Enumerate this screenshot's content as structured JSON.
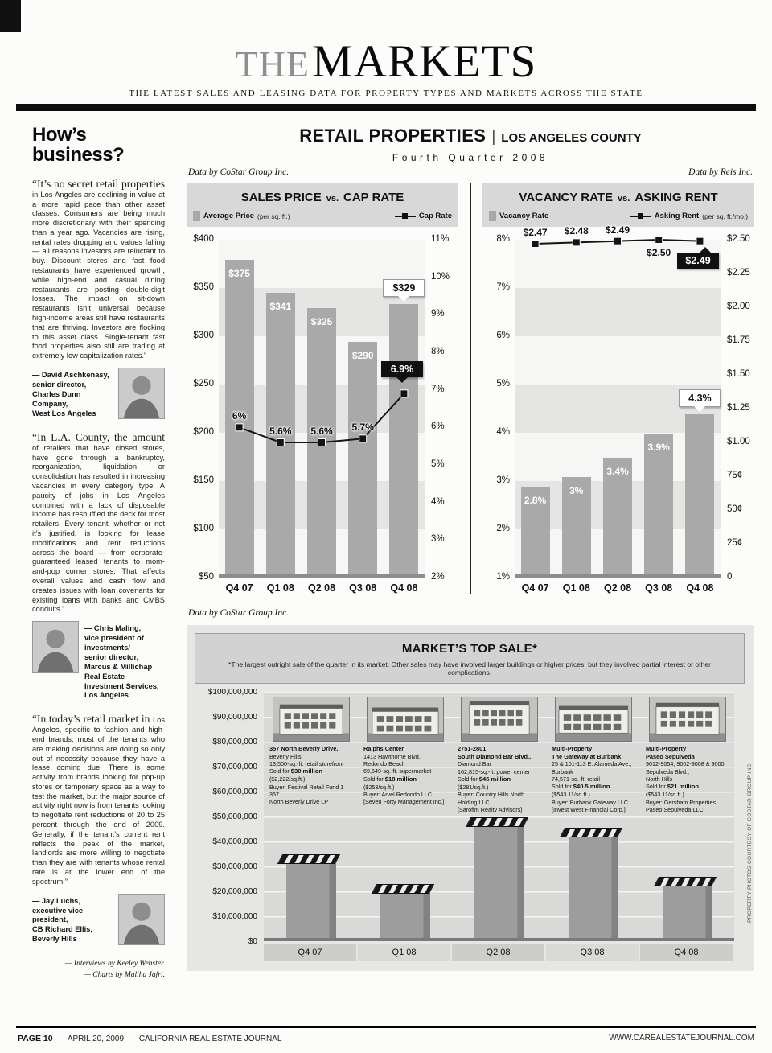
{
  "page": {
    "masthead_the": "THE",
    "masthead_markets": "MARKETS",
    "tagline": "THE LATEST SALES AND LEASING DATA FOR PROPERTY TYPES AND MARKETS ACROSS THE STATE",
    "photo_credit": "PROPERTY PHOTOS COURTESY OF COSTAR GROUP INC.",
    "footer": {
      "page_label": "PAGE 10",
      "date": "APRIL 20, 2009",
      "publication": "CALIFORNIA REAL ESTATE JOURNAL",
      "website": "WWW.CAREALESTATEJOURNAL.COM"
    }
  },
  "sidebar": {
    "heading_line1": "How’s",
    "heading_line2": "business?",
    "quotes": [
      {
        "lead": "“It’s no secret retail properties",
        "body": "in Los Angeles are declining in value at a more rapid pace than other asset classes. Consumers are being much more discretionary with their spending than a year ago. Vacancies are rising, rental rates dropping and values falling — all reasons investors are reluctant to buy. Discount stores and fast food restaurants have experienced growth, while high-end and casual dining restaurants are posting double-digit losses. The impact on sit-down restaurants isn’t universal because high-income areas still have restaurants that are thriving. Investors are flocking to this asset class. Single-tenant fast food properties also still are trading at extremely low capitalization rates.”",
        "attribution": [
          "— David Aschkenasy,",
          "senior director,",
          "Charles Dunn Company,",
          "West Los Angeles"
        ],
        "photo_side": "right"
      },
      {
        "lead": "“In L.A. County, the amount",
        "body": "of retailers that have closed stores, have gone through a bankruptcy, reorganization, liquidation or consolidation has resulted in increasing vacancies in every category type. A paucity of jobs in Los Angeles combined with a lack of disposable income has reshuffled the deck for most retailers. Every tenant, whether or not it’s justified, is looking for lease modifications and rent reductions across the board — from corporate-guaranteed leased tenants to mom-and-pop corner stores. That affects overall values and cash flow and creates issues with loan covenants for existing loans with banks and CMBS conduits.”",
        "attribution": [
          "— Chris Maling,",
          "vice president of investments/",
          "senior director,",
          "Marcus & Millichap",
          "Real Estate Investment Services,",
          "Los Angeles"
        ],
        "photo_side": "left"
      },
      {
        "lead": "“In today’s retail market in",
        "body": "Los Angeles, specific to fashion and high-end brands, most of the tenants who are making decisions are doing so only out of necessity because they have a lease coming due. There is some activity from brands looking for pop-up stores or temporary space as a way to test the market, but the major source of activity right now is from tenants looking to negotiate rent reductions of 20 to 25 percent through the end of 2009. Generally, if the tenant’s current rent reflects the peak of the market, landlords are more willing to negotiate than they are with tenants whose rental rate is at the lower end of the spectrum.”",
        "attribution": [
          "— Jay Luchs,",
          "executive vice president,",
          "CB Richard Ellis,",
          "Beverly Hills"
        ],
        "photo_side": "right"
      }
    ],
    "credits": [
      "— Interviews by Keeley Webster.",
      "— Charts by Maliha Jafri."
    ]
  },
  "main": {
    "title": "RETAIL PROPERTIES",
    "title_sep": "|",
    "region": "LOS ANGELES COUNTY",
    "quarter": "Fourth Quarter 2008"
  },
  "chart_data": [
    {
      "id": "sales-price-vs-cap-rate",
      "type": "bar+line",
      "source": "Data by CoStar Group Inc.",
      "title_parts": [
        "SALES PRICE",
        "vs.",
        "CAP RATE"
      ],
      "legend": [
        {
          "swatch": "bar",
          "label": "Average Price",
          "suffix": " (per sq. ft.)"
        },
        {
          "swatch": "line",
          "label": "Cap Rate",
          "suffix": ""
        }
      ],
      "categories": [
        "Q4 07",
        "Q1 08",
        "Q2 08",
        "Q3 08",
        "Q4 08"
      ],
      "bars": {
        "name": "Average Price",
        "axis": "left",
        "values": [
          375,
          341,
          325,
          290,
          329
        ],
        "labels": [
          "$375",
          "$341",
          "$325",
          "$290",
          "$329"
        ],
        "callout_index": 4
      },
      "line": {
        "name": "Cap Rate",
        "axis": "right",
        "values": [
          6.0,
          5.6,
          5.6,
          5.7,
          6.9
        ],
        "labels": [
          "6%",
          "5.6%",
          "5.6%",
          "5.7%",
          "6.9%"
        ],
        "callout_index": 4,
        "label_positions": [
          "above",
          "above",
          "above",
          "above",
          "callout-above"
        ]
      },
      "left_axis": {
        "min": 50,
        "max": 400,
        "tick_labels": [
          "$400",
          "$350",
          "$300",
          "$250",
          "$200",
          "$150",
          "$100",
          "$50"
        ]
      },
      "right_axis": {
        "min": 2,
        "max": 11,
        "tick_labels": [
          "11%",
          "10%",
          "9%",
          "8%",
          "7%",
          "6%",
          "5%",
          "4%",
          "3%",
          "2%"
        ]
      }
    },
    {
      "id": "vacancy-rate-vs-asking-rent",
      "type": "bar+line",
      "source": "Data by Reis Inc.",
      "title_parts": [
        "VACANCY RATE",
        "vs.",
        "ASKING RENT"
      ],
      "legend": [
        {
          "swatch": "bar",
          "label": "Vacancy Rate",
          "suffix": ""
        },
        {
          "swatch": "line",
          "label": "Asking Rent",
          "suffix": " (per sq. ft./mo.)"
        }
      ],
      "categories": [
        "Q4 07",
        "Q1 08",
        "Q2 08",
        "Q3 08",
        "Q4 08"
      ],
      "bars": {
        "name": "Vacancy Rate",
        "axis": "left",
        "values": [
          2.8,
          3.0,
          3.4,
          3.9,
          4.3
        ],
        "labels": [
          "2.8%",
          "3%",
          "3.4%",
          "3.9%",
          "4.3%"
        ],
        "callout_index": 4
      },
      "line": {
        "name": "Asking Rent",
        "axis": "right",
        "values": [
          2.47,
          2.48,
          2.49,
          2.5,
          2.49
        ],
        "labels": [
          "$2.47",
          "$2.48",
          "$2.49",
          "$2.50",
          "$2.49"
        ],
        "callout_index": 4,
        "label_positions": [
          "above",
          "above",
          "above",
          "below",
          "callout-below"
        ]
      },
      "left_axis": {
        "min": 1,
        "max": 8,
        "tick_labels": [
          "8%",
          "7%",
          "6%",
          "5%",
          "4%",
          "3%",
          "2%",
          "1%"
        ]
      },
      "right_axis": {
        "min": 0,
        "max": 2.5,
        "tick_labels": [
          "$2.50",
          "$2.25",
          "$2.00",
          "$1.75",
          "$1.50",
          "$1.25",
          "$1.00",
          "75¢",
          "50¢",
          "25¢",
          "0"
        ]
      }
    },
    {
      "id": "markets-top-sale",
      "type": "bar",
      "source": "Data by CoStar Group Inc.",
      "title": "MARKET’S TOP SALE*",
      "footnote": "*The largest outright sale of the quarter in its market.  Other sales may have involved larger buildings or higher prices, but they involved partial interest or other complications.",
      "categories": [
        "Q4 07",
        "Q1 08",
        "Q2 08",
        "Q3 08",
        "Q4 08"
      ],
      "values": [
        30000000,
        18000000,
        45000000,
        40500000,
        21000000
      ],
      "y_axis": {
        "min": 0,
        "max": 100000000,
        "tick_labels": [
          "$100,000,000",
          "$90,000,000",
          "$80,000,000",
          "$70,000,000",
          "$60,000,000",
          "$50,000,000",
          "$40,000,000",
          "$30,000,000",
          "$20,000,000",
          "$10,000,000",
          "$0"
        ]
      },
      "properties": [
        {
          "title_lines": [
            "357 North Beverly Drive,"
          ],
          "detail_lines": [
            "Beverly Hills",
            "13,500-sq.-ft. retail storefront"
          ],
          "sold_label": "Sold for ",
          "sold_value": "$30 million",
          "extra_lines": [
            "($2,222/sq.ft.)",
            "Buyer: Festival Retail Fund 1 357",
            "North Beverly Drive LP"
          ]
        },
        {
          "title_lines": [
            "Ralphs Center"
          ],
          "detail_lines": [
            "1413 Hawthorne Blvd.,",
            "Redondo Beach",
            "69,649-sq.-ft. supermarket"
          ],
          "sold_label": "Sold for ",
          "sold_value": "$18 million",
          "extra_lines": [
            "($253/sq.ft.)",
            "Buyer: Arvel Redondo LLC",
            "[Seven Forty Management Inc.]"
          ]
        },
        {
          "title_lines": [
            "2751-2801",
            "South Diamond Bar Blvd.,"
          ],
          "detail_lines": [
            "Diamond Bar",
            "162,815-sq.-ft. power center"
          ],
          "sold_label": "Sold for ",
          "sold_value": "$45 million",
          "extra_lines": [
            "($281/sq.ft.)",
            "Buyer: Country Hills North",
            "Holding LLC",
            "[Sarofim Realty Advisors]"
          ]
        },
        {
          "title_lines": [
            "Multi-Property",
            "The Gateway at Burbank"
          ],
          "detail_lines": [
            "25 & 101-113 E. Alameda Ave.,",
            "Burbank",
            "74,571-sq.-ft. retail"
          ],
          "sold_label": "Sold for ",
          "sold_value": "$40.5 million",
          "extra_lines": [
            "($543.11/sq.ft.)",
            "Buyer: Burbank Gateway LLC",
            "[Invest West Financial Corp.]"
          ]
        },
        {
          "title_lines": [
            "Multi-Property",
            "Paseo Sepulveda"
          ],
          "detail_lines": [
            "9012-9054, 9002-9008 & 9000",
            "Sepulveda Blvd.,",
            "North Hills"
          ],
          "sold_label": "Sold for ",
          "sold_value": "$21 million",
          "extra_lines": [
            "($543.11/sq.ft.)",
            "Buyer: Gersham Properties",
            "Paseo Sepulveda LLC"
          ]
        }
      ]
    }
  ]
}
